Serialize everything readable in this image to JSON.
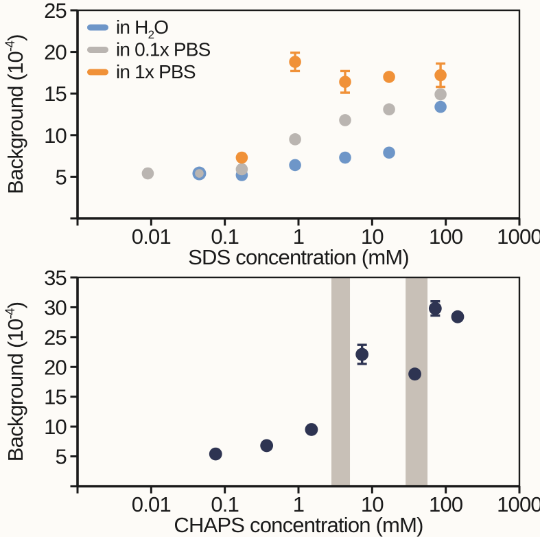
{
  "figure": {
    "background": "#fdfbf7",
    "text_color": "#1a1a1a",
    "axis_color": "#1a1a1a"
  },
  "chart_data": [
    {
      "id": "sds",
      "type": "scatter",
      "xscale": "log",
      "xlabel": "SDS concentration (mM)",
      "ylabel": {
        "pre": "Background (10",
        "sup": "-4",
        "post": ")"
      },
      "xlim": [
        0.001,
        1000
      ],
      "ylim": [
        0,
        25
      ],
      "grid": false,
      "legend_position": "top-left",
      "xticks": [
        {
          "v": 0.001,
          "label": ""
        },
        {
          "v": 0.01,
          "label": "0.01"
        },
        {
          "v": 0.1,
          "label": "0.1"
        },
        {
          "v": 1,
          "label": "1"
        },
        {
          "v": 10,
          "label": "10"
        },
        {
          "v": 100,
          "label": "100"
        },
        {
          "v": 1000,
          "label": "1000"
        }
      ],
      "yticks": [
        {
          "v": 0,
          "label": ""
        },
        {
          "v": 5,
          "label": "5"
        },
        {
          "v": 10,
          "label": "10"
        },
        {
          "v": 15,
          "label": "15"
        },
        {
          "v": 20,
          "label": "20"
        },
        {
          "v": 25,
          "label": "25"
        }
      ],
      "series": [
        {
          "id": "h2o",
          "label": {
            "pre": "in H",
            "sub": "2",
            "post": "O"
          },
          "color": "#6e96c8",
          "points": [
            {
              "x": 0.045,
              "y": 5.4,
              "r": 10
            },
            {
              "x": 0.17,
              "y": 5.2
            },
            {
              "x": 0.9,
              "y": 6.4
            },
            {
              "x": 4.3,
              "y": 7.3
            },
            {
              "x": 17,
              "y": 7.9
            },
            {
              "x": 85,
              "y": 13.4
            }
          ]
        },
        {
          "id": "pbs01",
          "label": {
            "pre": "in 0.1x PBS",
            "sub": "",
            "post": ""
          },
          "color": "#bab5b1",
          "points": [
            {
              "x": 0.009,
              "y": 5.4
            },
            {
              "x": 0.045,
              "y": 5.4,
              "r": 6.3
            },
            {
              "x": 0.17,
              "y": 5.9
            },
            {
              "x": 0.9,
              "y": 9.5
            },
            {
              "x": 4.3,
              "y": 11.8
            },
            {
              "x": 17,
              "y": 13.1
            },
            {
              "x": 85,
              "y": 14.9
            }
          ]
        },
        {
          "id": "pbs1",
          "label": {
            "pre": "in 1x PBS",
            "sub": "",
            "post": ""
          },
          "color": "#f09138",
          "points": [
            {
              "x": 0.17,
              "y": 7.3
            },
            {
              "x": 0.9,
              "y": 18.8,
              "err": 1.1
            },
            {
              "x": 4.3,
              "y": 16.4,
              "err": 1.3
            },
            {
              "x": 17,
              "y": 17.0
            },
            {
              "x": 85,
              "y": 17.2,
              "err": 1.4
            }
          ]
        }
      ]
    },
    {
      "id": "chaps",
      "type": "scatter",
      "xscale": "log",
      "xlabel": "CHAPS concentration (mM)",
      "ylabel": {
        "pre": "Background (10",
        "sup": "-4",
        "post": ")"
      },
      "xlim": [
        0.001,
        1000
      ],
      "ylim": [
        0,
        35
      ],
      "grid": false,
      "bands": [
        {
          "from": 2.8,
          "to": 5.0,
          "color": "#c8c0b7"
        },
        {
          "from": 28.5,
          "to": 56.5,
          "color": "#c8c0b7"
        }
      ],
      "xticks": [
        {
          "v": 0.001,
          "label": ""
        },
        {
          "v": 0.01,
          "label": "0.01"
        },
        {
          "v": 0.1,
          "label": "0.1"
        },
        {
          "v": 1,
          "label": "1"
        },
        {
          "v": 10,
          "label": "10"
        },
        {
          "v": 100,
          "label": "100"
        },
        {
          "v": 1000,
          "label": "1000"
        }
      ],
      "yticks": [
        {
          "v": 0,
          "label": ""
        },
        {
          "v": 5,
          "label": "5"
        },
        {
          "v": 10,
          "label": "10"
        },
        {
          "v": 15,
          "label": "15"
        },
        {
          "v": 20,
          "label": "20"
        },
        {
          "v": 25,
          "label": "25"
        },
        {
          "v": 30,
          "label": "30"
        },
        {
          "v": 35,
          "label": "35"
        }
      ],
      "series": [
        {
          "id": "chaps",
          "color": "#2e3452",
          "points": [
            {
              "x": 0.075,
              "y": 5.4
            },
            {
              "x": 0.37,
              "y": 6.8
            },
            {
              "x": 1.5,
              "y": 9.5
            },
            {
              "x": 7.3,
              "y": 22.1,
              "err": 1.6
            },
            {
              "x": 38,
              "y": 18.8
            },
            {
              "x": 72,
              "y": 29.8,
              "err": 1.2
            },
            {
              "x": 145,
              "y": 28.4
            }
          ]
        }
      ]
    }
  ]
}
